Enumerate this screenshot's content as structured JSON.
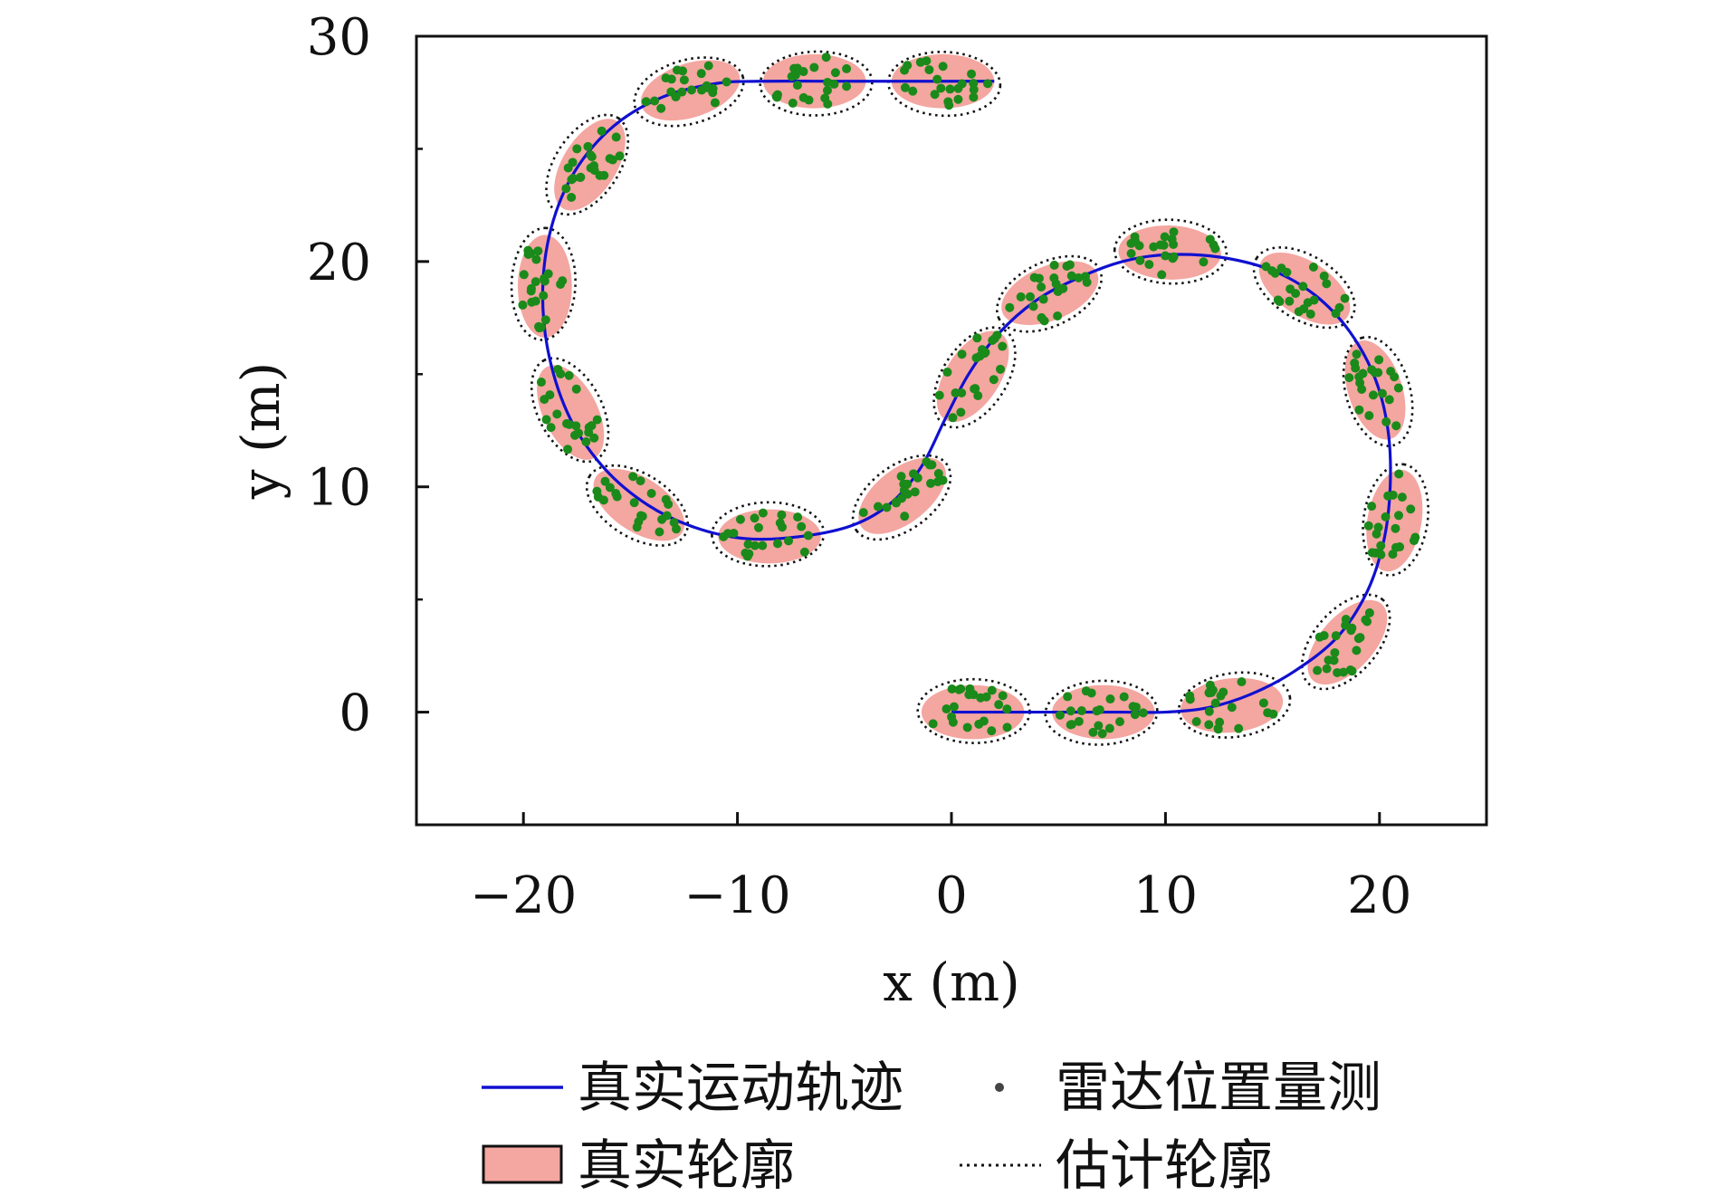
{
  "chart_data": {
    "type": "scatter",
    "xlabel": "x (m)",
    "ylabel": "y (m)",
    "xlim": [
      -25,
      25
    ],
    "ylim": [
      -5,
      30
    ],
    "xticks": [
      "−20",
      "−10",
      "0",
      "10",
      "20"
    ],
    "xtick_values": [
      -20,
      -10,
      0,
      10,
      20
    ],
    "yticks": [
      "0",
      "10",
      "20",
      "30"
    ],
    "ytick_values": [
      0,
      10,
      20,
      30
    ],
    "grid": false,
    "legend_position": "bottom",
    "series": [
      {
        "name": "真实运动轨迹",
        "kind": "line",
        "color": "#1010d0",
        "points": [
          [
            0,
            0
          ],
          [
            2,
            0
          ],
          [
            4,
            0
          ],
          [
            6,
            0
          ],
          [
            8,
            0
          ],
          [
            10,
            0
          ],
          [
            12,
            0.2
          ],
          [
            14,
            0.8
          ],
          [
            16,
            1.8
          ],
          [
            18,
            3.3
          ],
          [
            19.4,
            5.3
          ],
          [
            20.2,
            7.6
          ],
          [
            20.5,
            10
          ],
          [
            20.4,
            12.5
          ],
          [
            19.8,
            14.8
          ],
          [
            18.6,
            16.9
          ],
          [
            17,
            18.5
          ],
          [
            15,
            19.6
          ],
          [
            12.5,
            20.2
          ],
          [
            10,
            20.3
          ],
          [
            8,
            20
          ],
          [
            6,
            19.3
          ],
          [
            4,
            18.3
          ],
          [
            2.2,
            16.8
          ],
          [
            0.8,
            15
          ],
          [
            -0.3,
            13
          ],
          [
            -1.4,
            10.9
          ],
          [
            -2.8,
            9.3
          ],
          [
            -4.6,
            8.3
          ],
          [
            -7,
            7.8
          ],
          [
            -9.6,
            7.7
          ],
          [
            -12,
            8.2
          ],
          [
            -14.2,
            9.2
          ],
          [
            -16.2,
            10.8
          ],
          [
            -17.8,
            13
          ],
          [
            -18.8,
            15.8
          ],
          [
            -19.1,
            18.7
          ],
          [
            -18.7,
            21.5
          ],
          [
            -17.6,
            24
          ],
          [
            -15.8,
            26
          ],
          [
            -13.5,
            27.3
          ],
          [
            -11,
            27.9
          ],
          [
            -9,
            28
          ],
          [
            -5,
            28
          ],
          [
            -1,
            28
          ],
          [
            2,
            28
          ]
        ]
      },
      {
        "name": "雷达位置量测",
        "kind": "points",
        "color": "#1a8a1a"
      },
      {
        "name": "真实轮廓",
        "kind": "ellipse",
        "fill": "#f4a6a0",
        "ellipses": [
          {
            "cx": 1.0,
            "cy": 0,
            "a": 2.4,
            "b": 1.2,
            "angle": 0
          },
          {
            "cx": 7.1,
            "cy": 0,
            "a": 2.4,
            "b": 1.2,
            "angle": 0
          },
          {
            "cx": 13.1,
            "cy": 0.3,
            "a": 2.4,
            "b": 1.2,
            "angle": 6
          },
          {
            "cx": 18.5,
            "cy": 3.1,
            "a": 2.4,
            "b": 1.2,
            "angle": 48
          },
          {
            "cx": 20.7,
            "cy": 8.5,
            "a": 2.4,
            "b": 1.2,
            "angle": 80
          },
          {
            "cx": 19.8,
            "cy": 14.3,
            "a": 2.4,
            "b": 1.2,
            "angle": 108
          },
          {
            "cx": 16.5,
            "cy": 18.8,
            "a": 2.4,
            "b": 1.2,
            "angle": 147
          },
          {
            "cx": 10.2,
            "cy": 20.4,
            "a": 2.4,
            "b": 1.2,
            "angle": 178
          },
          {
            "cx": 4.6,
            "cy": 18.6,
            "a": 2.4,
            "b": 1.2,
            "angle": 203
          },
          {
            "cx": 1.0,
            "cy": 14.9,
            "a": 2.4,
            "b": 1.2,
            "angle": 237
          },
          {
            "cx": -2.3,
            "cy": 9.6,
            "a": 2.4,
            "b": 1.2,
            "angle": 218
          },
          {
            "cx": -8.5,
            "cy": 7.8,
            "a": 2.4,
            "b": 1.2,
            "angle": 180
          },
          {
            "cx": -14.6,
            "cy": 9.2,
            "a": 2.4,
            "b": 1.2,
            "angle": 147
          },
          {
            "cx": -17.8,
            "cy": 13.3,
            "a": 2.4,
            "b": 1.2,
            "angle": 117
          },
          {
            "cx": -19.0,
            "cy": 18.9,
            "a": 2.4,
            "b": 1.2,
            "angle": 90
          },
          {
            "cx": -16.9,
            "cy": 24.3,
            "a": 2.4,
            "b": 1.2,
            "angle": 58
          },
          {
            "cx": -12.2,
            "cy": 27.6,
            "a": 2.4,
            "b": 1.2,
            "angle": 18
          },
          {
            "cx": -6.4,
            "cy": 28,
            "a": 2.4,
            "b": 1.2,
            "angle": 0
          },
          {
            "cx": -0.4,
            "cy": 28,
            "a": 2.4,
            "b": 1.2,
            "angle": 0
          }
        ]
      },
      {
        "name": "估计轮廓",
        "kind": "ellipse-outline",
        "color": "#111111"
      }
    ]
  }
}
